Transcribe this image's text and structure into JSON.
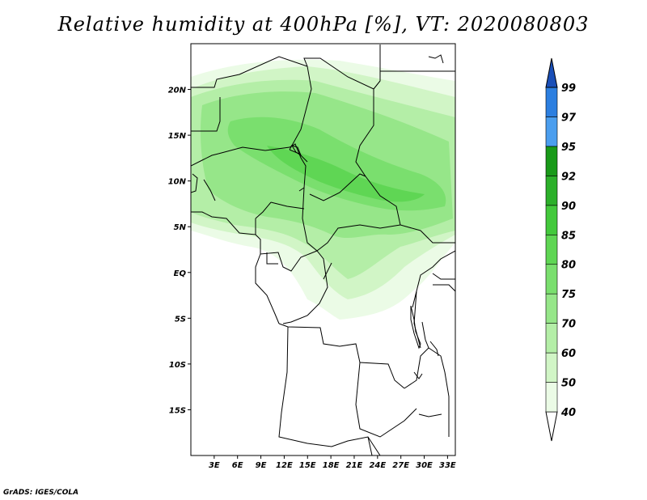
{
  "title": "Relative humidity at 400hPa [%], VT: 2020080803",
  "credit": "GrADS: IGES/COLA",
  "map": {
    "lat_range": [
      -20,
      25
    ],
    "lon_range": [
      0,
      34
    ],
    "lat_ticks": [
      {
        "value": 20,
        "label": "20N"
      },
      {
        "value": 15,
        "label": "15N"
      },
      {
        "value": 10,
        "label": "10N"
      },
      {
        "value": 5,
        "label": "5N"
      },
      {
        "value": 0,
        "label": "EQ"
      },
      {
        "value": -5,
        "label": "5S"
      },
      {
        "value": -10,
        "label": "10S"
      },
      {
        "value": -15,
        "label": "15S"
      }
    ],
    "lon_ticks": [
      {
        "value": 3,
        "label": "3E"
      },
      {
        "value": 6,
        "label": "6E"
      },
      {
        "value": 9,
        "label": "9E"
      },
      {
        "value": 12,
        "label": "12E"
      },
      {
        "value": 15,
        "label": "15E"
      },
      {
        "value": 18,
        "label": "18E"
      },
      {
        "value": 21,
        "label": "21E"
      },
      {
        "value": 24,
        "label": "24E"
      },
      {
        "value": 27,
        "label": "27E"
      },
      {
        "value": 30,
        "label": "30E"
      },
      {
        "value": 33,
        "label": "33E"
      }
    ]
  },
  "colorbar": {
    "levels": [
      40,
      50,
      60,
      70,
      75,
      80,
      85,
      90,
      92,
      95,
      97,
      99
    ],
    "colors": [
      "#ebfbe6",
      "#d1f5c6",
      "#b4eea7",
      "#96e689",
      "#7adf6e",
      "#5fd654",
      "#43c93c",
      "#2cb02a",
      "#199a19",
      "#4b9eee",
      "#2c7fe0",
      "#1d5bc6"
    ],
    "under_color": "#ffffff",
    "over_color": "#1a4fb8"
  }
}
